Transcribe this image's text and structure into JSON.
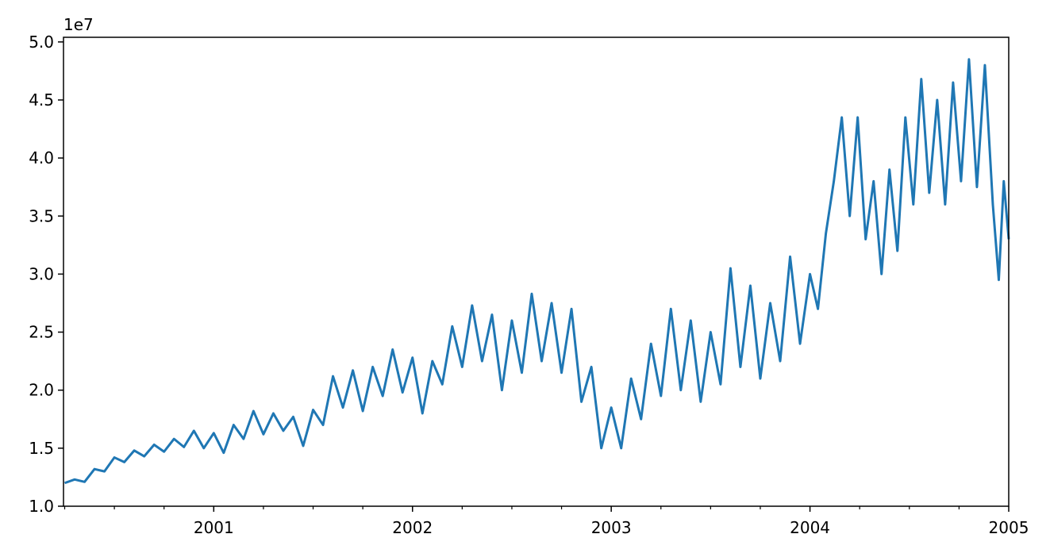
{
  "chart_data": {
    "type": "line",
    "y_offset_label": "1e7",
    "color": "#1f77b4",
    "x": [
      2000.25,
      2000.3,
      2000.35,
      2000.4,
      2000.45,
      2000.5,
      2000.55,
      2000.6,
      2000.65,
      2000.7,
      2000.75,
      2000.8,
      2000.85,
      2000.9,
      2000.95,
      2001.0,
      2001.05,
      2001.1,
      2001.15,
      2001.2,
      2001.25,
      2001.3,
      2001.35,
      2001.4,
      2001.45,
      2001.5,
      2001.55,
      2001.6,
      2001.65,
      2001.7,
      2001.75,
      2001.8,
      2001.85,
      2001.9,
      2001.95,
      2002.0,
      2002.05,
      2002.1,
      2002.15,
      2002.2,
      2002.25,
      2002.3,
      2002.35,
      2002.4,
      2002.45,
      2002.5,
      2002.55,
      2002.6,
      2002.65,
      2002.7,
      2002.75,
      2002.8,
      2002.85,
      2002.9,
      2002.95,
      2003.0,
      2003.05,
      2003.1,
      2003.15,
      2003.2,
      2003.25,
      2003.3,
      2003.35,
      2003.4,
      2003.45,
      2003.5,
      2003.55,
      2003.6,
      2003.65,
      2003.7,
      2003.75,
      2003.8,
      2003.85,
      2003.9,
      2003.95,
      2004.0,
      2004.04,
      2004.08,
      2004.12,
      2004.16,
      2004.2,
      2004.24,
      2004.28,
      2004.32,
      2004.36,
      2004.4,
      2004.44,
      2004.48,
      2004.52,
      2004.56,
      2004.6,
      2004.64,
      2004.68,
      2004.72,
      2004.76,
      2004.8,
      2004.84,
      2004.88,
      2004.92,
      2004.95,
      2004.975,
      2005.0
    ],
    "values": [
      12000000,
      12300000,
      12100000,
      13200000,
      13000000,
      14200000,
      13800000,
      14800000,
      14300000,
      15300000,
      14700000,
      15800000,
      15100000,
      16500000,
      15000000,
      16300000,
      14600000,
      17000000,
      15800000,
      18200000,
      16200000,
      18000000,
      16500000,
      17700000,
      15200000,
      18300000,
      17000000,
      21200000,
      18500000,
      21700000,
      18200000,
      22000000,
      19500000,
      23500000,
      19800000,
      22800000,
      18000000,
      22500000,
      20500000,
      25500000,
      22000000,
      27300000,
      22500000,
      26500000,
      20000000,
      26000000,
      21500000,
      28300000,
      22500000,
      27500000,
      21500000,
      27000000,
      19000000,
      22000000,
      15000000,
      18500000,
      15000000,
      21000000,
      17500000,
      24000000,
      19500000,
      27000000,
      20000000,
      26000000,
      19000000,
      25000000,
      20500000,
      30500000,
      22000000,
      29000000,
      21000000,
      27500000,
      22500000,
      31500000,
      24000000,
      30000000,
      27000000,
      33500000,
      38000000,
      43500000,
      35000000,
      43500000,
      33000000,
      38000000,
      30000000,
      39000000,
      32000000,
      43500000,
      36000000,
      46800000,
      37000000,
      45000000,
      36000000,
      46500000,
      38000000,
      48500000,
      37500000,
      48000000,
      36000000,
      29500000,
      38000000,
      33000000
    ],
    "xlim": [
      2000.244,
      2005.0
    ],
    "xticks": [
      2001,
      2002,
      2003,
      2004,
      2005
    ],
    "xminorticks": [
      2000.25,
      2000.5,
      2000.75,
      2001.25,
      2001.5,
      2001.75,
      2002.25,
      2002.5,
      2002.75,
      2003.25,
      2003.5,
      2003.75,
      2004.25,
      2004.5,
      2004.75
    ],
    "ylim": [
      10000000,
      50400000
    ],
    "yticks": [
      {
        "value": 10000000,
        "label": "1.0"
      },
      {
        "value": 15000000,
        "label": "1.5"
      },
      {
        "value": 20000000,
        "label": "2.0"
      },
      {
        "value": 25000000,
        "label": "2.5"
      },
      {
        "value": 30000000,
        "label": "3.0"
      },
      {
        "value": 35000000,
        "label": "3.5"
      },
      {
        "value": 40000000,
        "label": "4.0"
      },
      {
        "value": 45000000,
        "label": "4.5"
      },
      {
        "value": 50000000,
        "label": "5.0"
      }
    ],
    "grid": false
  }
}
